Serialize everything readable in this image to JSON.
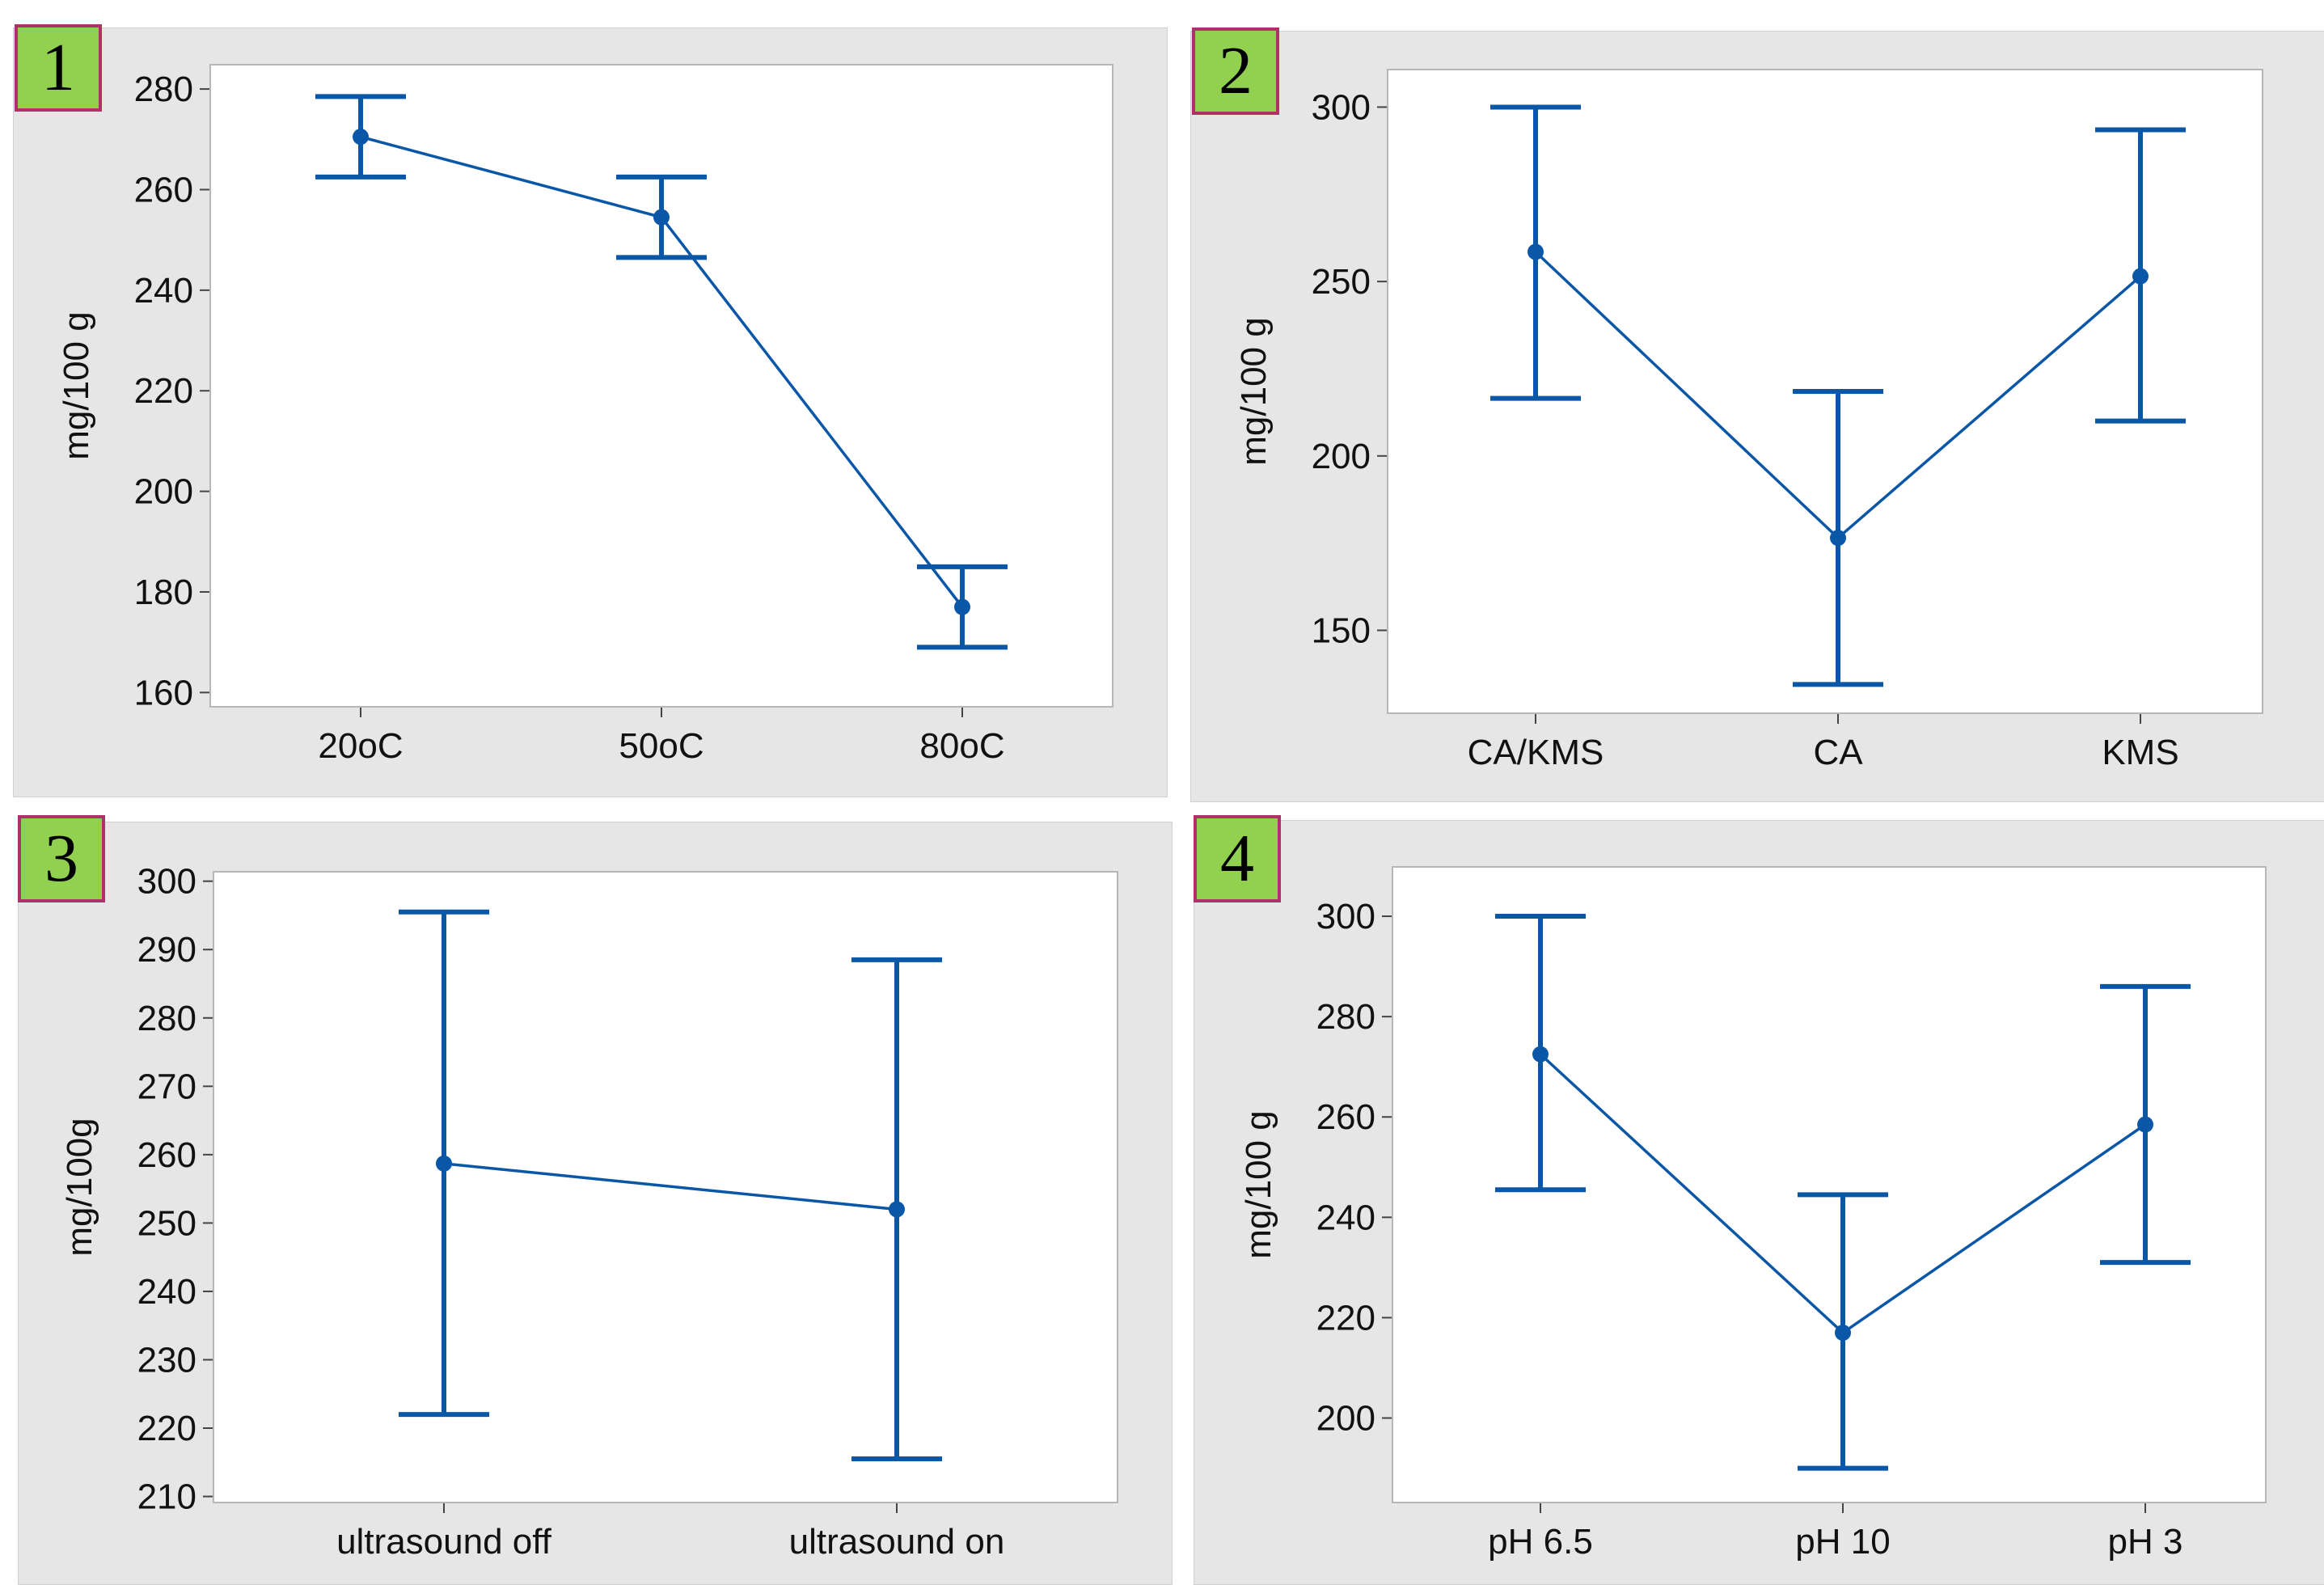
{
  "figure": {
    "colors": {
      "series": "#0a57a8",
      "panel_bg": "#e6e6e6",
      "plot_bg": "#ffffff",
      "badge_fill": "#92d050",
      "badge_border": "#b0306a"
    }
  },
  "chart_data": [
    {
      "type": "line",
      "panel_label": "1",
      "ylabel": "mg/100 g",
      "categories": [
        "20oC",
        "50oC",
        "80oC"
      ],
      "yticks": [
        160,
        180,
        200,
        220,
        240,
        260,
        280
      ],
      "ylim": [
        157,
        285
      ],
      "series": [
        {
          "values": [
            270.5,
            254.5,
            177.0
          ],
          "lower": [
            262.5,
            246.5,
            169.0
          ],
          "upper": [
            278.5,
            262.5,
            185.0
          ]
        }
      ],
      "grid": false
    },
    {
      "type": "line",
      "panel_label": "2",
      "ylabel": "mg/100 g",
      "categories": [
        "CA/KMS",
        "CA",
        "KMS"
      ],
      "yticks": [
        150,
        200,
        250,
        300
      ],
      "ylim": [
        126,
        311
      ],
      "series": [
        {
          "values": [
            258.5,
            176.5,
            251.5
          ],
          "lower": [
            216.5,
            134.5,
            210.0
          ],
          "upper": [
            300.0,
            218.5,
            293.5
          ]
        }
      ],
      "grid": false
    },
    {
      "type": "line",
      "panel_label": "3",
      "ylabel": "mg/100g",
      "categories": [
        "ultrasound off",
        "ultrasound on"
      ],
      "yticks": [
        210,
        220,
        230,
        240,
        250,
        260,
        270,
        280,
        290,
        300
      ],
      "ylim": [
        209,
        301.5
      ],
      "series": [
        {
          "values": [
            258.7,
            252.0
          ],
          "lower": [
            222.0,
            215.5
          ],
          "upper": [
            295.5,
            288.5
          ]
        }
      ],
      "grid": false
    },
    {
      "type": "line",
      "panel_label": "4",
      "ylabel": "mg/100 g",
      "categories": [
        "pH 6.5",
        "pH 10",
        "pH 3"
      ],
      "yticks": [
        200,
        220,
        240,
        260,
        280,
        300
      ],
      "ylim": [
        183,
        310
      ],
      "series": [
        {
          "values": [
            272.5,
            217.0,
            258.5
          ],
          "lower": [
            245.5,
            190.0,
            231.0
          ],
          "upper": [
            300.0,
            244.5,
            286.0
          ]
        }
      ],
      "grid": false
    }
  ]
}
